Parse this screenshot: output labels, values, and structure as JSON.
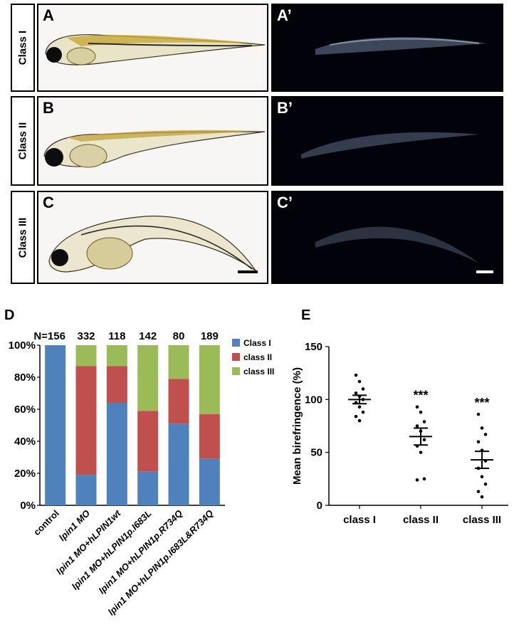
{
  "panels": {
    "row_labels": [
      "Class I",
      "Class II",
      "Class III"
    ],
    "bright_labels": [
      "A",
      "B",
      "C"
    ],
    "dark_labels": [
      "A’",
      "B’",
      "C’"
    ]
  },
  "figure_labels": {
    "d": "D",
    "e": "E"
  },
  "chart_data": [
    {
      "type": "bar",
      "stacked": true,
      "categories": [
        "control",
        "lpin1 MO",
        "lpin1 MO+hLPIN1wt",
        "lpin1 MO+hLPIN1p.I683L",
        "lpin1 MO+hLPIN1p.R734Q",
        "lpin1 MO+hLPIN1p.I683L&R734Q"
      ],
      "n_labels": [
        "N=156",
        "332",
        "118",
        "142",
        "80",
        "189"
      ],
      "series": [
        {
          "name": "Class I",
          "color": "#4f81bd",
          "values": [
            100,
            19,
            64,
            21,
            51,
            29
          ]
        },
        {
          "name": "class II",
          "color": "#c0504d",
          "values": [
            0,
            68,
            23,
            38,
            28,
            28
          ]
        },
        {
          "name": "class III",
          "color": "#9bbb59",
          "values": [
            0,
            13,
            13,
            41,
            21,
            43
          ]
        }
      ],
      "yticks": [
        "0%",
        "20%",
        "40%",
        "60%",
        "80%",
        "100%"
      ],
      "ylim": [
        0,
        100
      ],
      "legend_position": "right"
    },
    {
      "type": "scatter",
      "categories": [
        "class I",
        "class II",
        "class III"
      ],
      "ylabel": "Mean birefringence (%)",
      "yticks": [
        "0",
        "50",
        "100",
        "150"
      ],
      "ylim": [
        0,
        150
      ],
      "means": [
        100,
        65,
        43
      ],
      "sem": [
        4,
        8,
        8
      ],
      "significance": [
        "",
        "***",
        "***"
      ],
      "points": [
        [
          123,
          117,
          110,
          106,
          103,
          100,
          97,
          93,
          88,
          84,
          80
        ],
        [
          93,
          88,
          79,
          75,
          70,
          62,
          56,
          50,
          25,
          24
        ],
        [
          86,
          73,
          67,
          60,
          52,
          42,
          35,
          27,
          20,
          13,
          8
        ]
      ]
    }
  ]
}
